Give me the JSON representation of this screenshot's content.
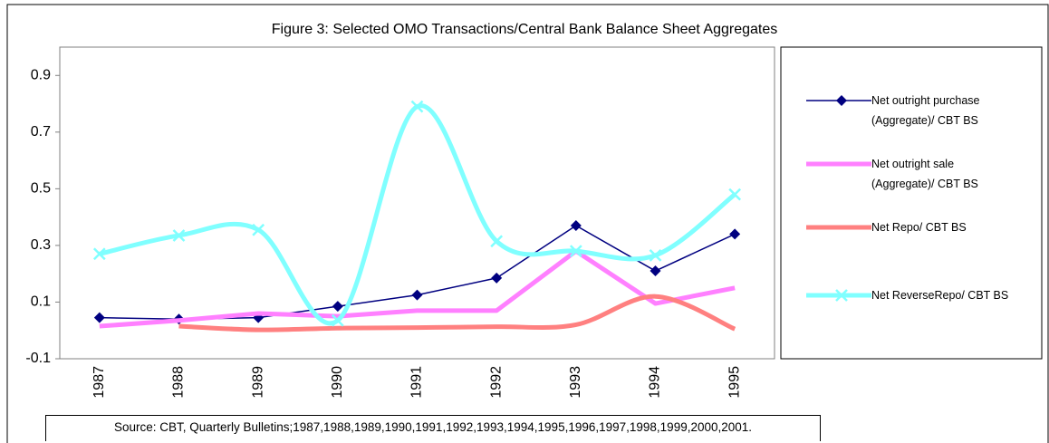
{
  "chart_data": {
    "type": "line",
    "title": "Figure 3: Selected OMO Transactions/Central Bank Balance Sheet Aggregates",
    "categories": [
      "1987",
      "1988",
      "1989",
      "1990",
      "1991",
      "1992",
      "1993",
      "1994",
      "1995"
    ],
    "series": [
      {
        "name": "Net outright purchase (Aggregate)/ CBT BS",
        "color": "#000080",
        "line_width": 1.5,
        "marker": "diamond",
        "smooth": false,
        "values": [
          0.045,
          0.04,
          0.045,
          0.085,
          0.125,
          0.185,
          0.37,
          0.21,
          0.34
        ]
      },
      {
        "name": "Net outright sale (Aggregate)/ CBT BS",
        "color": "#ff80ff",
        "line_width": 5,
        "marker": "none",
        "smooth": false,
        "values": [
          0.015,
          0.035,
          0.06,
          0.05,
          0.07,
          0.07,
          0.28,
          0.095,
          0.15
        ]
      },
      {
        "name": "Net Repo/ CBT BS",
        "color": "#ff8080",
        "line_width": 5,
        "marker": "none",
        "smooth": true,
        "values": [
          null,
          0.015,
          0.002,
          0.008,
          0.01,
          0.013,
          0.02,
          0.12,
          0.005
        ]
      },
      {
        "name": "Net ReverseRepo/ CBT BS",
        "color": "#80ffff",
        "line_width": 5,
        "marker": "x",
        "smooth": true,
        "values": [
          0.27,
          0.335,
          0.355,
          0.035,
          0.79,
          0.315,
          0.28,
          0.265,
          0.48
        ]
      }
    ],
    "ylim": [
      -0.1,
      1.0
    ],
    "yticks": [
      -0.1,
      0.1,
      0.3,
      0.5,
      0.7,
      0.9
    ],
    "grid": false,
    "legend": "right",
    "source": "Source: CBT, Quarterly Bulletins;1987,1988,1989,1990,1991,1992,1993,1994,1995,1996,1997,1998,1999,2000,2001."
  }
}
